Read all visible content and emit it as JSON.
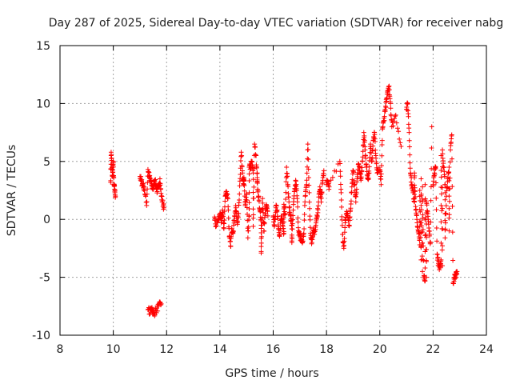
{
  "chart_data": {
    "type": "scatter",
    "title": "Day 287 of 2025, Sidereal Day-to-day VTEC variation (SDTVAR) for receiver nabg",
    "xlabel": "GPS time / hours",
    "ylabel": "SDTVAR / TECUs",
    "xlim": [
      8,
      24
    ],
    "ylim": [
      -10,
      15
    ],
    "xticks": [
      "8",
      "10",
      "12",
      "14",
      "16",
      "18",
      "20",
      "22",
      "24"
    ],
    "yticks": [
      "-10",
      "-5",
      "0",
      "5",
      "10",
      "15"
    ],
    "grid": true,
    "marker": "plus",
    "marker_color": "#ff0000",
    "series": [
      {
        "name": "nabg",
        "segments": [
          {
            "start": 9.9,
            "end": 10.1,
            "points": [
              [
                9.9,
                3.2
              ],
              [
                9.92,
                5.8
              ],
              [
                9.95,
                4.5
              ],
              [
                9.97,
                3.7
              ],
              [
                10.0,
                5.0
              ],
              [
                10.02,
                3.0
              ],
              [
                10.05,
                2.6
              ],
              [
                10.08,
                2.0
              ]
            ]
          },
          {
            "start": 11.0,
            "end": 11.9,
            "points": [
              [
                11.0,
                3.7
              ],
              [
                11.05,
                3.3
              ],
              [
                11.1,
                3.0
              ],
              [
                11.15,
                2.8
              ],
              [
                11.25,
                1.2
              ],
              [
                11.3,
                4.3
              ],
              [
                11.35,
                3.7
              ],
              [
                11.4,
                3.3
              ],
              [
                11.45,
                2.9
              ],
              [
                11.5,
                2.6
              ],
              [
                11.55,
                3.4
              ],
              [
                11.6,
                3.0
              ],
              [
                11.65,
                2.4
              ],
              [
                11.7,
                2.8
              ],
              [
                11.75,
                3.5
              ],
              [
                11.8,
                2.0
              ],
              [
                11.85,
                1.5
              ],
              [
                11.9,
                1.0
              ]
            ]
          },
          {
            "start": 11.3,
            "end": 11.85,
            "points": [
              [
                11.3,
                -7.8
              ],
              [
                11.4,
                -8.0
              ],
              [
                11.45,
                -7.6
              ],
              [
                11.5,
                -8.2
              ],
              [
                11.6,
                -7.9
              ],
              [
                11.7,
                -7.5
              ],
              [
                11.8,
                -7.3
              ]
            ]
          },
          {
            "start": 13.8,
            "end": 15.8,
            "points": [
              [
                13.8,
                0.2
              ],
              [
                13.85,
                -0.6
              ],
              [
                13.95,
                0.0
              ],
              [
                14.0,
                0.5
              ],
              [
                14.05,
                -0.3
              ],
              [
                14.1,
                0.8
              ],
              [
                14.15,
                -0.8
              ],
              [
                14.2,
                2.0
              ],
              [
                14.25,
                2.4
              ],
              [
                14.3,
                1.8
              ],
              [
                14.35,
                -1.5
              ],
              [
                14.4,
                -2.3
              ],
              [
                14.45,
                -0.8
              ],
              [
                14.5,
                -1.0
              ],
              [
                14.55,
                0.3
              ],
              [
                14.6,
                1.0
              ],
              [
                14.65,
                -0.3
              ],
              [
                14.7,
                0.5
              ],
              [
                14.75,
                3.3
              ],
              [
                14.8,
                5.8
              ],
              [
                14.85,
                4.0
              ],
              [
                14.9,
                3.0
              ],
              [
                14.95,
                1.2
              ],
              [
                15.0,
                2.2
              ],
              [
                15.05,
                -1.6
              ],
              [
                15.1,
                0.3
              ],
              [
                15.15,
                4.5
              ],
              [
                15.2,
                5.0
              ],
              [
                15.25,
                4.0
              ],
              [
                15.3,
                6.5
              ],
              [
                15.35,
                5.5
              ],
              [
                15.4,
                4.0
              ],
              [
                15.45,
                2.0
              ],
              [
                15.5,
                0.8
              ],
              [
                15.55,
                -0.5
              ],
              [
                15.6,
                1.8
              ],
              [
                15.65,
                -1.0
              ],
              [
                15.7,
                0.5
              ],
              [
                15.75,
                1.2
              ],
              [
                15.8,
                0.3
              ],
              [
                15.55,
                -2.9
              ],
              [
                15.25,
                -0.6
              ],
              [
                14.9,
                3.5
              ],
              [
                15.1,
                4.5
              ],
              [
                15.4,
                3.2
              ]
            ]
          },
          {
            "start": 16.0,
            "end": 17.9,
            "points": [
              [
                16.0,
                0.2
              ],
              [
                16.05,
                -0.5
              ],
              [
                16.1,
                1.0
              ],
              [
                16.15,
                0.8
              ],
              [
                16.2,
                -0.8
              ],
              [
                16.25,
                -1.3
              ],
              [
                16.3,
                0.3
              ],
              [
                16.35,
                -0.5
              ],
              [
                16.4,
                -1.2
              ],
              [
                16.45,
                0.5
              ],
              [
                16.5,
                4.5
              ],
              [
                16.55,
                3.0
              ],
              [
                16.6,
                1.0
              ],
              [
                16.65,
                0.3
              ],
              [
                16.7,
                -0.5
              ],
              [
                16.75,
                0.8
              ],
              [
                16.8,
                2.4
              ],
              [
                16.85,
                3.3
              ],
              [
                16.9,
                1.8
              ],
              [
                16.95,
                -1.0
              ],
              [
                17.0,
                -1.5
              ],
              [
                17.05,
                -1.8
              ],
              [
                17.1,
                -2.0
              ],
              [
                17.15,
                -1.2
              ],
              [
                17.2,
                2.0
              ],
              [
                17.25,
                3.0
              ],
              [
                17.3,
                6.5
              ],
              [
                17.35,
                2.3
              ],
              [
                17.4,
                -1.2
              ],
              [
                17.45,
                -2.0
              ],
              [
                17.5,
                -0.8
              ],
              [
                17.55,
                -1.3
              ],
              [
                17.6,
                -0.5
              ],
              [
                17.65,
                0.2
              ],
              [
                17.7,
                1.5
              ],
              [
                17.75,
                2.8
              ],
              [
                17.8,
                1.5
              ],
              [
                17.85,
                3.2
              ],
              [
                17.9,
                4.2
              ],
              [
                16.7,
                -2.0
              ],
              [
                16.4,
                1.3
              ]
            ]
          },
          {
            "start": 18.0,
            "end": 19.95,
            "points": [
              [
                18.0,
                3.0
              ],
              [
                18.05,
                3.3
              ],
              [
                18.1,
                2.8
              ],
              [
                18.5,
                5.0
              ],
              [
                18.55,
                2.3
              ],
              [
                18.6,
                -1.3
              ],
              [
                18.65,
                -2.5
              ],
              [
                18.7,
                -0.3
              ],
              [
                18.75,
                0.5
              ],
              [
                18.8,
                0.2
              ],
              [
                18.85,
                -0.5
              ],
              [
                18.9,
                0.8
              ],
              [
                18.95,
                2.8
              ],
              [
                19.0,
                4.2
              ],
              [
                19.05,
                3.0
              ],
              [
                19.1,
                1.5
              ],
              [
                19.15,
                3.5
              ],
              [
                19.2,
                4.8
              ],
              [
                19.25,
                4.0
              ],
              [
                19.3,
                3.5
              ],
              [
                19.35,
                5.0
              ],
              [
                19.4,
                7.5
              ],
              [
                19.45,
                6.0
              ],
              [
                19.5,
                4.5
              ],
              [
                19.55,
                3.5
              ],
              [
                19.6,
                4.0
              ],
              [
                19.65,
                6.5
              ],
              [
                19.7,
                5.0
              ],
              [
                19.75,
                6.8
              ],
              [
                19.8,
                7.5
              ],
              [
                19.85,
                5.5
              ],
              [
                19.9,
                4.0
              ],
              [
                19.95,
                4.2
              ]
            ]
          },
          {
            "start": 20.0,
            "end": 20.95,
            "points": [
              [
                20.0,
                4.3
              ],
              [
                20.05,
                3.0
              ],
              [
                20.1,
                7.8
              ],
              [
                20.15,
                8.5
              ],
              [
                20.2,
                9.5
              ],
              [
                20.25,
                10.2
              ],
              [
                20.3,
                11.0
              ],
              [
                20.35,
                11.5
              ],
              [
                20.4,
                10.0
              ],
              [
                20.45,
                8.0
              ],
              [
                20.6,
                9.0
              ],
              [
                20.8,
                6.3
              ]
            ]
          },
          {
            "start": 21.0,
            "end": 21.95,
            "points": [
              [
                21.0,
                9.5
              ],
              [
                21.05,
                10.0
              ],
              [
                21.1,
                7.5
              ],
              [
                21.15,
                4.0
              ],
              [
                21.2,
                3.0
              ],
              [
                21.25,
                2.3
              ],
              [
                21.3,
                1.5
              ],
              [
                21.35,
                0.8
              ],
              [
                21.4,
                -0.3
              ],
              [
                21.45,
                -1.0
              ],
              [
                21.5,
                -2.2
              ],
              [
                21.55,
                -3.5
              ],
              [
                21.6,
                -4.5
              ],
              [
                21.65,
                -5.0
              ],
              [
                21.7,
                -5.3
              ],
              [
                21.75,
                -5.0
              ],
              [
                21.55,
                3.5
              ],
              [
                21.6,
                2.8
              ],
              [
                21.7,
                3.0
              ],
              [
                21.75,
                1.5
              ],
              [
                21.8,
                0.5
              ],
              [
                21.85,
                -1.0
              ],
              [
                21.9,
                -2.0
              ],
              [
                21.95,
                8.0
              ],
              [
                21.3,
                4.0
              ],
              [
                21.5,
                2.5
              ]
            ]
          },
          {
            "start": 22.0,
            "end": 22.95,
            "points": [
              [
                22.0,
                3.0
              ],
              [
                22.05,
                4.0
              ],
              [
                22.1,
                4.5
              ],
              [
                22.15,
                -3.0
              ],
              [
                22.2,
                -3.8
              ],
              [
                22.25,
                -4.2
              ],
              [
                22.3,
                -3.5
              ],
              [
                22.35,
                -4.0
              ],
              [
                22.3,
                5.5
              ],
              [
                22.35,
                6.0
              ],
              [
                22.4,
                4.5
              ],
              [
                22.45,
                3.0
              ],
              [
                22.5,
                2.0
              ],
              [
                22.55,
                3.5
              ],
              [
                22.6,
                4.5
              ],
              [
                22.65,
                6.0
              ],
              [
                22.7,
                7.3
              ],
              [
                22.75,
                -5.5
              ],
              [
                22.8,
                -5.0
              ],
              [
                22.85,
                -4.8
              ],
              [
                22.9,
                -4.5
              ],
              [
                22.45,
                -1.6
              ],
              [
                22.6,
                -1.0
              ]
            ]
          }
        ]
      }
    ]
  }
}
